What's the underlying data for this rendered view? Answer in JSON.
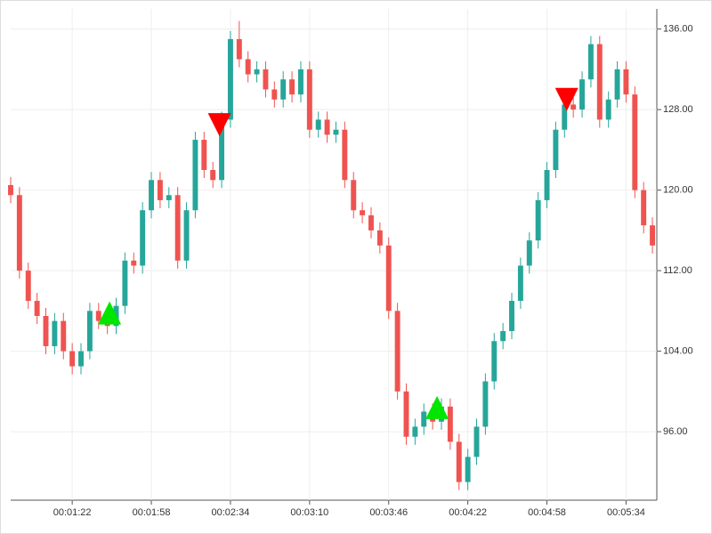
{
  "chart_data": {
    "type": "candlestick",
    "x": [
      54,
      58,
      62,
      66,
      70,
      74,
      78,
      82,
      86,
      90,
      94,
      98,
      102,
      106,
      110,
      114,
      118,
      122,
      126,
      130,
      134,
      138,
      142,
      146,
      150,
      154,
      158,
      162,
      166,
      170,
      174,
      178,
      182,
      186,
      190,
      194,
      198,
      202,
      206,
      210,
      214,
      218,
      222,
      226,
      230,
      234,
      238,
      242,
      246,
      250,
      254,
      258,
      262,
      266,
      270,
      274,
      278,
      282,
      286,
      290,
      294,
      298,
      302,
      306,
      310,
      314,
      318,
      322,
      326,
      330,
      334,
      338,
      342,
      346
    ],
    "open": [
      120.5,
      119.5,
      112,
      109,
      107.5,
      104.5,
      107,
      104,
      102.5,
      104,
      108,
      107,
      106.5,
      108.5,
      113,
      112.5,
      118,
      121,
      119,
      119.5,
      113,
      118,
      125,
      122,
      121,
      127,
      135,
      133,
      131.5,
      132,
      130,
      129,
      131,
      129.5,
      132,
      126,
      127,
      125.5,
      126,
      121,
      118,
      117.5,
      116,
      114.5,
      108,
      100,
      95.5,
      96.5,
      98,
      97,
      98.5,
      95,
      91,
      93.5,
      96.5,
      101,
      105,
      106,
      109,
      112.5,
      115,
      119,
      122,
      126,
      128.5,
      128,
      131,
      134.5,
      127,
      129,
      132,
      129.5,
      120,
      116.5
    ],
    "high": [
      121.3,
      120.3,
      112.8,
      109.8,
      108.3,
      107.8,
      107.8,
      104.8,
      104.8,
      108.8,
      108.8,
      107.8,
      109.3,
      113.8,
      113.8,
      118.8,
      121.8,
      121.8,
      120.3,
      120.3,
      118.8,
      125.8,
      125.8,
      122.8,
      127.8,
      135.8,
      136.8,
      133.8,
      132.8,
      132.8,
      130.8,
      131.8,
      131.8,
      132.8,
      132.8,
      127.8,
      127.8,
      126.8,
      126.8,
      121.8,
      118.8,
      118.3,
      116.8,
      115.3,
      108.8,
      100.8,
      97.3,
      98.8,
      98.8,
      99.3,
      99.3,
      95.8,
      94.3,
      97.3,
      101.8,
      105.8,
      106.8,
      109.8,
      113.3,
      115.8,
      119.8,
      122.8,
      126.8,
      129.3,
      129.3,
      131.8,
      135.3,
      135.3,
      129.8,
      132.8,
      132.8,
      130.3,
      120.8,
      117.3
    ],
    "low": [
      118.7,
      111.2,
      108.2,
      106.7,
      103.7,
      103.7,
      103.2,
      101.7,
      101.7,
      103.2,
      106.2,
      105.7,
      105.7,
      107.7,
      111.7,
      111.7,
      117.2,
      118.2,
      118.2,
      112.2,
      112.2,
      117.2,
      121.2,
      120.2,
      120.2,
      126.2,
      132.2,
      130.7,
      130.7,
      129.2,
      128.2,
      128.2,
      128.7,
      128.7,
      125.2,
      125.2,
      124.7,
      124.7,
      120.2,
      117.2,
      116.7,
      115.2,
      113.7,
      107.2,
      99.2,
      94.7,
      94.7,
      95.7,
      96.2,
      96.2,
      94.2,
      90.2,
      90.2,
      92.7,
      95.7,
      100.2,
      104.2,
      105.2,
      108.2,
      111.7,
      114.2,
      118.2,
      121.2,
      125.2,
      127.2,
      127.2,
      130.2,
      126.2,
      126.2,
      128.2,
      128.7,
      119.2,
      115.7,
      113.7
    ],
    "close": [
      119.5,
      112,
      109,
      107.5,
      104.5,
      107,
      104,
      102.5,
      104,
      108,
      107,
      106.5,
      108.5,
      113,
      112.5,
      118,
      121,
      119,
      119.5,
      113,
      118,
      125,
      122,
      121,
      127,
      135,
      133,
      131.5,
      132,
      130,
      129,
      131,
      129.5,
      132,
      126,
      127,
      125.5,
      126,
      121,
      118,
      117.5,
      116,
      114.5,
      108,
      100,
      95.5,
      96.5,
      98,
      97,
      98.5,
      95,
      91,
      93.5,
      96.5,
      101,
      105,
      106,
      109,
      112.5,
      115,
      119,
      122,
      126,
      128.5,
      128,
      131,
      134.5,
      127,
      129,
      132,
      129.5,
      120,
      116.5,
      114.5
    ],
    "up_color": "#26a69a",
    "down_color": "#ef5350",
    "buy_signals": {
      "x": [
        99,
        248
      ],
      "y": [
        107.8,
        98.4
      ],
      "color": "#00e600"
    },
    "sell_signals": {
      "x": [
        149,
        307
      ],
      "y": [
        126.5,
        129
      ],
      "color": "#ff0000"
    },
    "xlim": [
      54,
      348
    ],
    "ylim": [
      89.2,
      138
    ],
    "xticks": [
      {
        "value": 82,
        "label": "00:01:22"
      },
      {
        "value": 118,
        "label": "00:01:58"
      },
      {
        "value": 154,
        "label": "00:02:34"
      },
      {
        "value": 190,
        "label": "00:03:10"
      },
      {
        "value": 226,
        "label": "00:03:46"
      },
      {
        "value": 262,
        "label": "00:04:22"
      },
      {
        "value": 298,
        "label": "00:04:58"
      },
      {
        "value": 334,
        "label": "00:05:34"
      }
    ],
    "yticks": [
      {
        "value": 96,
        "label": "96.00"
      },
      {
        "value": 104,
        "label": "104.00"
      },
      {
        "value": 112,
        "label": "112.00"
      },
      {
        "value": 120,
        "label": "120.00"
      },
      {
        "value": 128,
        "label": "128.00"
      },
      {
        "value": 136,
        "label": "136.00"
      }
    ],
    "grid": true
  }
}
